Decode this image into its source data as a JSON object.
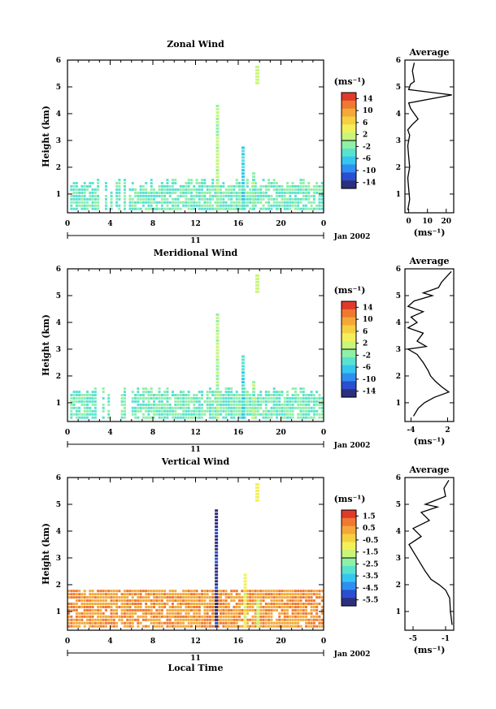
{
  "chart_data": [
    {
      "type": "heatmap",
      "title": "Zonal Wind",
      "ylabel": "Height (km)",
      "xlabel": "",
      "unit": "(ms⁻¹)",
      "xlim": [
        0,
        24
      ],
      "ylim": [
        0.3,
        6
      ],
      "xticks": [
        "0",
        "4",
        "8",
        "12",
        "16",
        "20",
        "0"
      ],
      "yticks": [
        "1",
        "2",
        "3",
        "4",
        "5",
        "6"
      ],
      "date_label": "11",
      "month_label": "Jan 2002",
      "colorbar_range": [
        -16,
        16
      ],
      "colorbar_ticks": [
        "14",
        "10",
        "6",
        "2",
        "-2",
        "-6",
        "-10",
        "-14"
      ],
      "profile": {
        "title": "Average",
        "xticks": [
          "0",
          "10",
          "20"
        ],
        "xlim": [
          -2,
          24
        ],
        "xlabel": "(ms⁻¹)",
        "points": [
          [
            -0.5,
            0.4
          ],
          [
            0.5,
            0.8
          ],
          [
            0,
            1.2
          ],
          [
            -0.5,
            1.6
          ],
          [
            0.5,
            2.0
          ],
          [
            0,
            2.4
          ],
          [
            -0.5,
            2.8
          ],
          [
            0.5,
            3.2
          ],
          [
            -0.5,
            3.4
          ],
          [
            2,
            3.6
          ],
          [
            5,
            3.8
          ],
          [
            3,
            4.0
          ],
          [
            1,
            4.2
          ],
          [
            0,
            4.4
          ],
          [
            23,
            4.7
          ],
          [
            0,
            4.9
          ],
          [
            1,
            5.1
          ],
          [
            3,
            5.2
          ],
          [
            2,
            5.6
          ],
          [
            3,
            5.9
          ]
        ]
      }
    },
    {
      "type": "heatmap",
      "title": "Meridional Wind",
      "ylabel": "Height (km)",
      "xlabel": "",
      "unit": "(ms⁻¹)",
      "xlim": [
        0,
        24
      ],
      "ylim": [
        0.3,
        6
      ],
      "xticks": [
        "0",
        "4",
        "8",
        "12",
        "16",
        "20",
        "0"
      ],
      "yticks": [
        "1",
        "2",
        "3",
        "4",
        "5",
        "6"
      ],
      "date_label": "11",
      "month_label": "Jan 2002",
      "colorbar_range": [
        -16,
        16
      ],
      "colorbar_ticks": [
        "14",
        "10",
        "6",
        "2",
        "-2",
        "-6",
        "-10",
        "-14"
      ],
      "profile": {
        "title": "Average",
        "xticks": [
          "-4",
          "2"
        ],
        "xlim": [
          -5,
          3
        ],
        "xlabel": "(ms⁻¹)",
        "points": [
          [
            -3.6,
            0.5
          ],
          [
            -2.8,
            0.8
          ],
          [
            -1.8,
            1.0
          ],
          [
            -0.2,
            1.2
          ],
          [
            2.2,
            1.4
          ],
          [
            1.0,
            1.6
          ],
          [
            0.0,
            1.8
          ],
          [
            -0.8,
            2.0
          ],
          [
            -1.2,
            2.2
          ],
          [
            -2.0,
            2.5
          ],
          [
            -3.0,
            2.8
          ],
          [
            -4.5,
            3.0
          ],
          [
            -1.5,
            3.1
          ],
          [
            -3.0,
            3.3
          ],
          [
            -2.0,
            3.6
          ],
          [
            -4.5,
            3.8
          ],
          [
            -3.0,
            4.0
          ],
          [
            -4.0,
            4.2
          ],
          [
            -2.0,
            4.4
          ],
          [
            -4.5,
            4.6
          ],
          [
            -3.5,
            4.8
          ],
          [
            -0.5,
            5.0
          ],
          [
            -2.0,
            5.1
          ],
          [
            0.5,
            5.3
          ],
          [
            1.0,
            5.5
          ],
          [
            2.6,
            5.9
          ]
        ]
      }
    },
    {
      "type": "heatmap",
      "title": "Vertical Wind",
      "ylabel": "Height (km)",
      "xlabel": "Local Time",
      "unit": "(ms⁻¹)",
      "xlim": [
        0,
        24
      ],
      "ylim": [
        0.3,
        6
      ],
      "xticks": [
        "0",
        "4",
        "8",
        "12",
        "16",
        "20",
        "0"
      ],
      "yticks": [
        "1",
        "2",
        "3",
        "4",
        "5",
        "6"
      ],
      "date_label": "11",
      "month_label": "Jan 2002",
      "colorbar_range": [
        -6,
        2
      ],
      "colorbar_ticks": [
        "1.5",
        "0.5",
        "-0.5",
        "-1.5",
        "-2.5",
        "-3.5",
        "-4.5",
        "-5.5"
      ],
      "profile": {
        "title": "Average",
        "xticks": [
          "-5",
          "-1"
        ],
        "xlim": [
          -6,
          0
        ],
        "xlabel": "(ms⁻¹)",
        "points": [
          [
            -0.2,
            0.5
          ],
          [
            -0.4,
            1.0
          ],
          [
            -0.5,
            1.5
          ],
          [
            -1.0,
            1.8
          ],
          [
            -1.8,
            2.0
          ],
          [
            -2.8,
            2.2
          ],
          [
            -3.5,
            2.5
          ],
          [
            -4.5,
            3.0
          ],
          [
            -5.5,
            3.5
          ],
          [
            -4.0,
            3.8
          ],
          [
            -5.0,
            4.1
          ],
          [
            -3.0,
            4.4
          ],
          [
            -4.0,
            4.7
          ],
          [
            -2.0,
            4.9
          ],
          [
            -3.5,
            5.0
          ],
          [
            -1.0,
            5.3
          ],
          [
            -1.2,
            5.6
          ],
          [
            -0.6,
            5.9
          ]
        ]
      }
    }
  ]
}
